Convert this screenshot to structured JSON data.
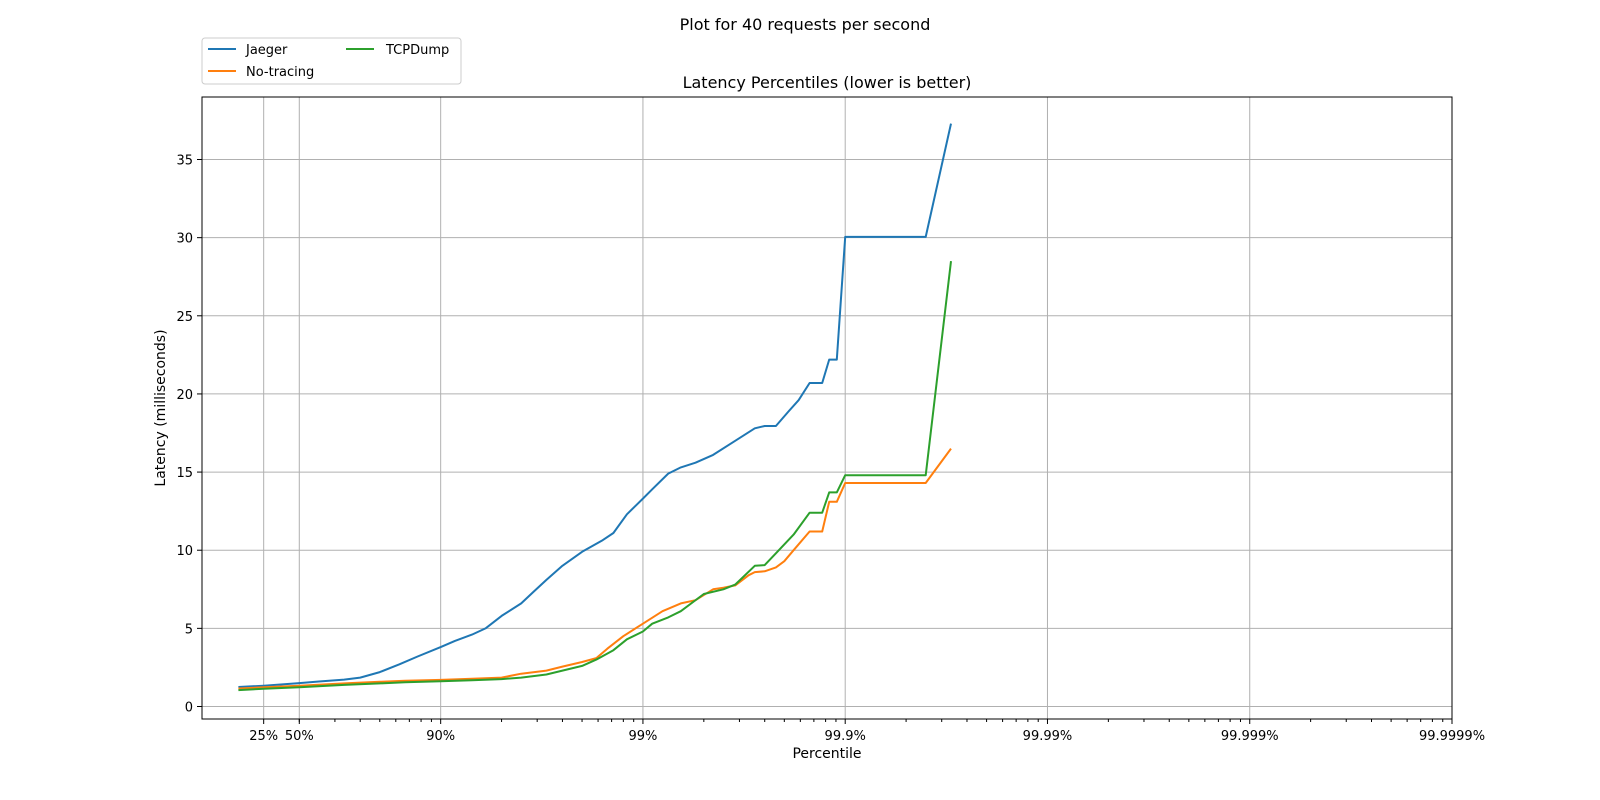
{
  "suptitle": "Plot for 40 requests per second",
  "chart_data": {
    "type": "line",
    "title": "Latency Percentiles (lower is better)",
    "xlabel": "Percentile",
    "ylabel": "Latency (milliseconds)",
    "x_scale": "log of 1/(1-percentile)",
    "ylim": [
      -0.8,
      39
    ],
    "y_ticks": [
      0,
      5,
      10,
      15,
      20,
      25,
      30,
      35
    ],
    "x_ticks": [
      {
        "p": 25,
        "label": "25%"
      },
      {
        "p": 50,
        "label": "50%"
      },
      {
        "p": 90,
        "label": "90%"
      },
      {
        "p": 99,
        "label": "99%"
      },
      {
        "p": 99.9,
        "label": "99.9%"
      },
      {
        "p": 99.99,
        "label": "99.99%"
      },
      {
        "p": 99.999,
        "label": "99.999%"
      },
      {
        "p": 99.9999,
        "label": "99.9999%"
      }
    ],
    "grid": true,
    "legend": "upper-left, outside above plot, 2 columns",
    "series": [
      {
        "name": "Jaeger",
        "color": "#1f77b4",
        "points": [
          [
            0,
            1.25
          ],
          [
            25,
            1.33
          ],
          [
            50,
            1.5
          ],
          [
            60,
            1.6
          ],
          [
            70,
            1.72
          ],
          [
            75,
            1.85
          ],
          [
            80,
            2.2
          ],
          [
            84,
            2.7
          ],
          [
            87,
            3.2
          ],
          [
            90,
            3.8
          ],
          [
            91.5,
            4.2
          ],
          [
            93,
            4.6
          ],
          [
            94,
            5.0
          ],
          [
            95,
            5.8
          ],
          [
            96,
            6.6
          ],
          [
            96.5,
            7.3
          ],
          [
            97,
            8.1
          ],
          [
            97.5,
            9.0
          ],
          [
            98,
            9.9
          ],
          [
            98.4,
            10.6
          ],
          [
            98.6,
            11.1
          ],
          [
            98.8,
            12.3
          ],
          [
            99,
            13.3
          ],
          [
            99.1,
            13.9
          ],
          [
            99.25,
            14.9
          ],
          [
            99.35,
            15.3
          ],
          [
            99.45,
            15.6
          ],
          [
            99.55,
            16.1
          ],
          [
            99.65,
            17.0
          ],
          [
            99.72,
            17.8
          ],
          [
            99.75,
            17.95
          ],
          [
            99.78,
            17.95
          ],
          [
            99.81,
            18.9
          ],
          [
            99.83,
            19.6
          ],
          [
            99.85,
            20.7
          ],
          [
            99.87,
            20.7
          ],
          [
            99.88,
            22.2
          ],
          [
            99.89,
            22.2
          ],
          [
            99.9,
            30.05
          ],
          [
            99.96,
            30.05
          ],
          [
            99.97,
            37.3
          ]
        ]
      },
      {
        "name": "No-tracing",
        "color": "#ff7f0e",
        "points": [
          [
            0,
            1.15
          ],
          [
            25,
            1.23
          ],
          [
            50,
            1.33
          ],
          [
            70,
            1.48
          ],
          [
            80,
            1.58
          ],
          [
            85,
            1.65
          ],
          [
            90,
            1.7
          ],
          [
            93,
            1.78
          ],
          [
            95,
            1.85
          ],
          [
            96,
            2.1
          ],
          [
            97,
            2.3
          ],
          [
            97.5,
            2.55
          ],
          [
            98,
            2.85
          ],
          [
            98.3,
            3.1
          ],
          [
            98.5,
            3.7
          ],
          [
            98.75,
            4.5
          ],
          [
            99,
            5.3
          ],
          [
            99.2,
            6.1
          ],
          [
            99.35,
            6.6
          ],
          [
            99.45,
            6.8
          ],
          [
            99.55,
            7.5
          ],
          [
            99.6,
            7.6
          ],
          [
            99.65,
            7.75
          ],
          [
            99.7,
            8.4
          ],
          [
            99.72,
            8.6
          ],
          [
            99.75,
            8.65
          ],
          [
            99.78,
            8.9
          ],
          [
            99.8,
            9.3
          ],
          [
            99.82,
            10.0
          ],
          [
            99.85,
            11.2
          ],
          [
            99.87,
            11.2
          ],
          [
            99.88,
            13.1
          ],
          [
            99.89,
            13.1
          ],
          [
            99.9,
            14.3
          ],
          [
            99.96,
            14.3
          ],
          [
            99.97,
            16.5
          ]
        ]
      },
      {
        "name": "TCPDump",
        "color": "#2ca02c",
        "points": [
          [
            0,
            1.05
          ],
          [
            25,
            1.13
          ],
          [
            50,
            1.23
          ],
          [
            70,
            1.38
          ],
          [
            80,
            1.48
          ],
          [
            85,
            1.55
          ],
          [
            90,
            1.62
          ],
          [
            93,
            1.68
          ],
          [
            95,
            1.75
          ],
          [
            96,
            1.85
          ],
          [
            97,
            2.05
          ],
          [
            97.5,
            2.3
          ],
          [
            98,
            2.6
          ],
          [
            98.3,
            3.0
          ],
          [
            98.6,
            3.6
          ],
          [
            98.8,
            4.3
          ],
          [
            99,
            4.8
          ],
          [
            99.1,
            5.3
          ],
          [
            99.25,
            5.7
          ],
          [
            99.35,
            6.1
          ],
          [
            99.5,
            7.2
          ],
          [
            99.6,
            7.5
          ],
          [
            99.65,
            7.8
          ],
          [
            99.72,
            9.0
          ],
          [
            99.75,
            9.05
          ],
          [
            99.78,
            9.8
          ],
          [
            99.82,
            11.0
          ],
          [
            99.85,
            12.4
          ],
          [
            99.87,
            12.4
          ],
          [
            99.88,
            13.7
          ],
          [
            99.89,
            13.7
          ],
          [
            99.9,
            14.8
          ],
          [
            99.96,
            14.8
          ],
          [
            99.97,
            28.5
          ]
        ]
      }
    ]
  }
}
